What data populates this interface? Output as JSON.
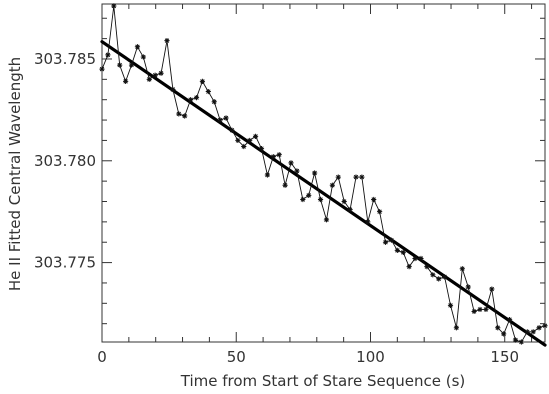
{
  "chart_data": {
    "type": "line",
    "title": "",
    "xlabel": "Time from Start of Stare Sequence (s)",
    "ylabel": "He II Fitted Central Wavelength",
    "xlim": [
      0,
      165
    ],
    "ylim": [
      303.7711,
      303.7877
    ],
    "x_ticks": [
      0,
      50,
      100,
      150
    ],
    "x_tick_labels": [
      "0",
      "50",
      "100",
      "150"
    ],
    "x_minor_step": 10,
    "y_ticks": [
      303.775,
      303.78,
      303.785
    ],
    "y_tick_labels": [
      "303.775",
      "303.780",
      "303.785"
    ],
    "y_minor_step": 0.001,
    "grid": false,
    "colors": {
      "axes": "#333333",
      "series": "#111111",
      "fit": "#000000"
    },
    "series": [
      {
        "marker": "star",
        "x": [
          0,
          2.2,
          4.4,
          6.6,
          8.8,
          11,
          13.2,
          15.4,
          17.6,
          19.8,
          22,
          24.2,
          26.4,
          28.6,
          30.8,
          33,
          35.2,
          37.4,
          39.6,
          41.8,
          44,
          46.2,
          48.4,
          50.6,
          52.8,
          55,
          57.2,
          59.4,
          61.6,
          63.8,
          66,
          68.2,
          70.4,
          72.6,
          74.8,
          77,
          79.2,
          81.4,
          83.6,
          85.8,
          88,
          90.2,
          92.4,
          94.6,
          96.8,
          99,
          101.2,
          103.4,
          105.6,
          107.8,
          110,
          112.2,
          114.4,
          116.6,
          118.8,
          121,
          123.2,
          125.4,
          127.6,
          129.8,
          132,
          134.2,
          136.4,
          138.6,
          140.8,
          143,
          145.2,
          147.4,
          149.6,
          151.8,
          154,
          156.2,
          158.4,
          160.6,
          162.8,
          165
        ],
        "values": [
          303.7845,
          303.7852,
          303.7876,
          303.7847,
          303.7839,
          303.7847,
          303.7856,
          303.7851,
          303.784,
          303.7842,
          303.7843,
          303.7859,
          303.7835,
          303.7823,
          303.7822,
          303.783,
          303.7831,
          303.7839,
          303.7834,
          303.7829,
          303.782,
          303.7821,
          303.7815,
          303.781,
          303.7807,
          303.781,
          303.7812,
          303.7806,
          303.7793,
          303.7802,
          303.7803,
          303.7788,
          303.7799,
          303.7795,
          303.7781,
          303.7783,
          303.7794,
          303.7781,
          303.7771,
          303.7788,
          303.7792,
          303.778,
          303.7776,
          303.7792,
          303.7792,
          303.777,
          303.7781,
          303.7775,
          303.776,
          303.7761,
          303.7756,
          303.7755,
          303.7748,
          303.7752,
          303.7752,
          303.7748,
          303.7744,
          303.7742,
          303.7743,
          303.7729,
          303.7718,
          303.7747,
          303.7738,
          303.7726,
          303.7727,
          303.7727,
          303.7737,
          303.7718,
          303.7715,
          303.7722,
          303.7712,
          303.7711,
          303.7716,
          303.7716,
          303.7718,
          303.7719
        ]
      },
      {
        "style": "fit",
        "x": [
          0,
          165
        ],
        "values": [
          303.78585,
          303.77095
        ]
      }
    ]
  }
}
